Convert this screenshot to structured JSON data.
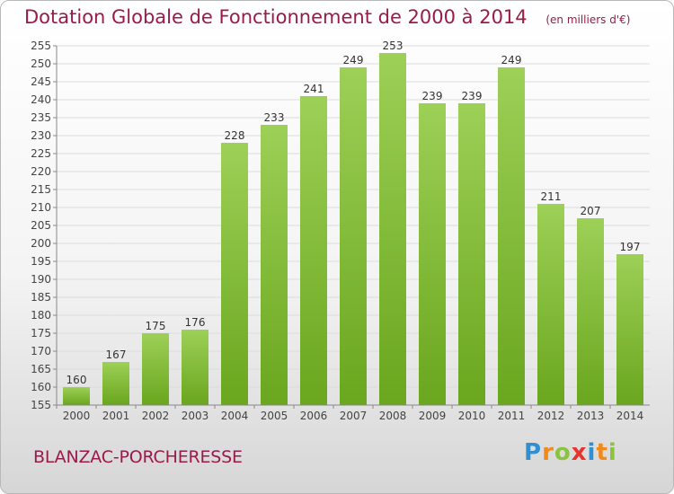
{
  "title": "Dotation Globale de Fonctionnement de 2000 à 2014",
  "unit_note": "(en milliers d'€)",
  "place_name": "BLANZAC-PORCHERESSE",
  "logo": {
    "text": "Proxiti",
    "letters": [
      {
        "ch": "P",
        "color": "#2f8fd0"
      },
      {
        "ch": "r",
        "color": "#f08a1c"
      },
      {
        "ch": "o",
        "color": "#8ac43f"
      },
      {
        "ch": "x",
        "color": "#e7342a"
      },
      {
        "ch": "i",
        "color": "#2f8fd0"
      },
      {
        "ch": "t",
        "color": "#f08a1c"
      },
      {
        "ch": "i",
        "color": "#8ac43f"
      }
    ]
  },
  "chart_data": {
    "type": "bar",
    "title": "Dotation Globale de Fonctionnement de 2000 à 2014",
    "subtitle": "(en milliers d'€)",
    "xlabel": "",
    "ylabel": "",
    "categories": [
      "2000",
      "2001",
      "2002",
      "2003",
      "2004",
      "2005",
      "2006",
      "2007",
      "2008",
      "2009",
      "2010",
      "2011",
      "2012",
      "2013",
      "2014"
    ],
    "values": [
      160,
      167,
      175,
      176,
      228,
      233,
      241,
      249,
      253,
      239,
      239,
      249,
      211,
      207,
      197
    ],
    "ylim": [
      155,
      255
    ],
    "yticks": [
      155,
      160,
      165,
      170,
      175,
      180,
      185,
      190,
      195,
      200,
      205,
      210,
      215,
      220,
      225,
      230,
      235,
      240,
      245,
      250,
      255
    ],
    "grid": true,
    "legend": "none",
    "bar_color_top": "#9dd057",
    "bar_color_bottom": "#6aa61e"
  }
}
